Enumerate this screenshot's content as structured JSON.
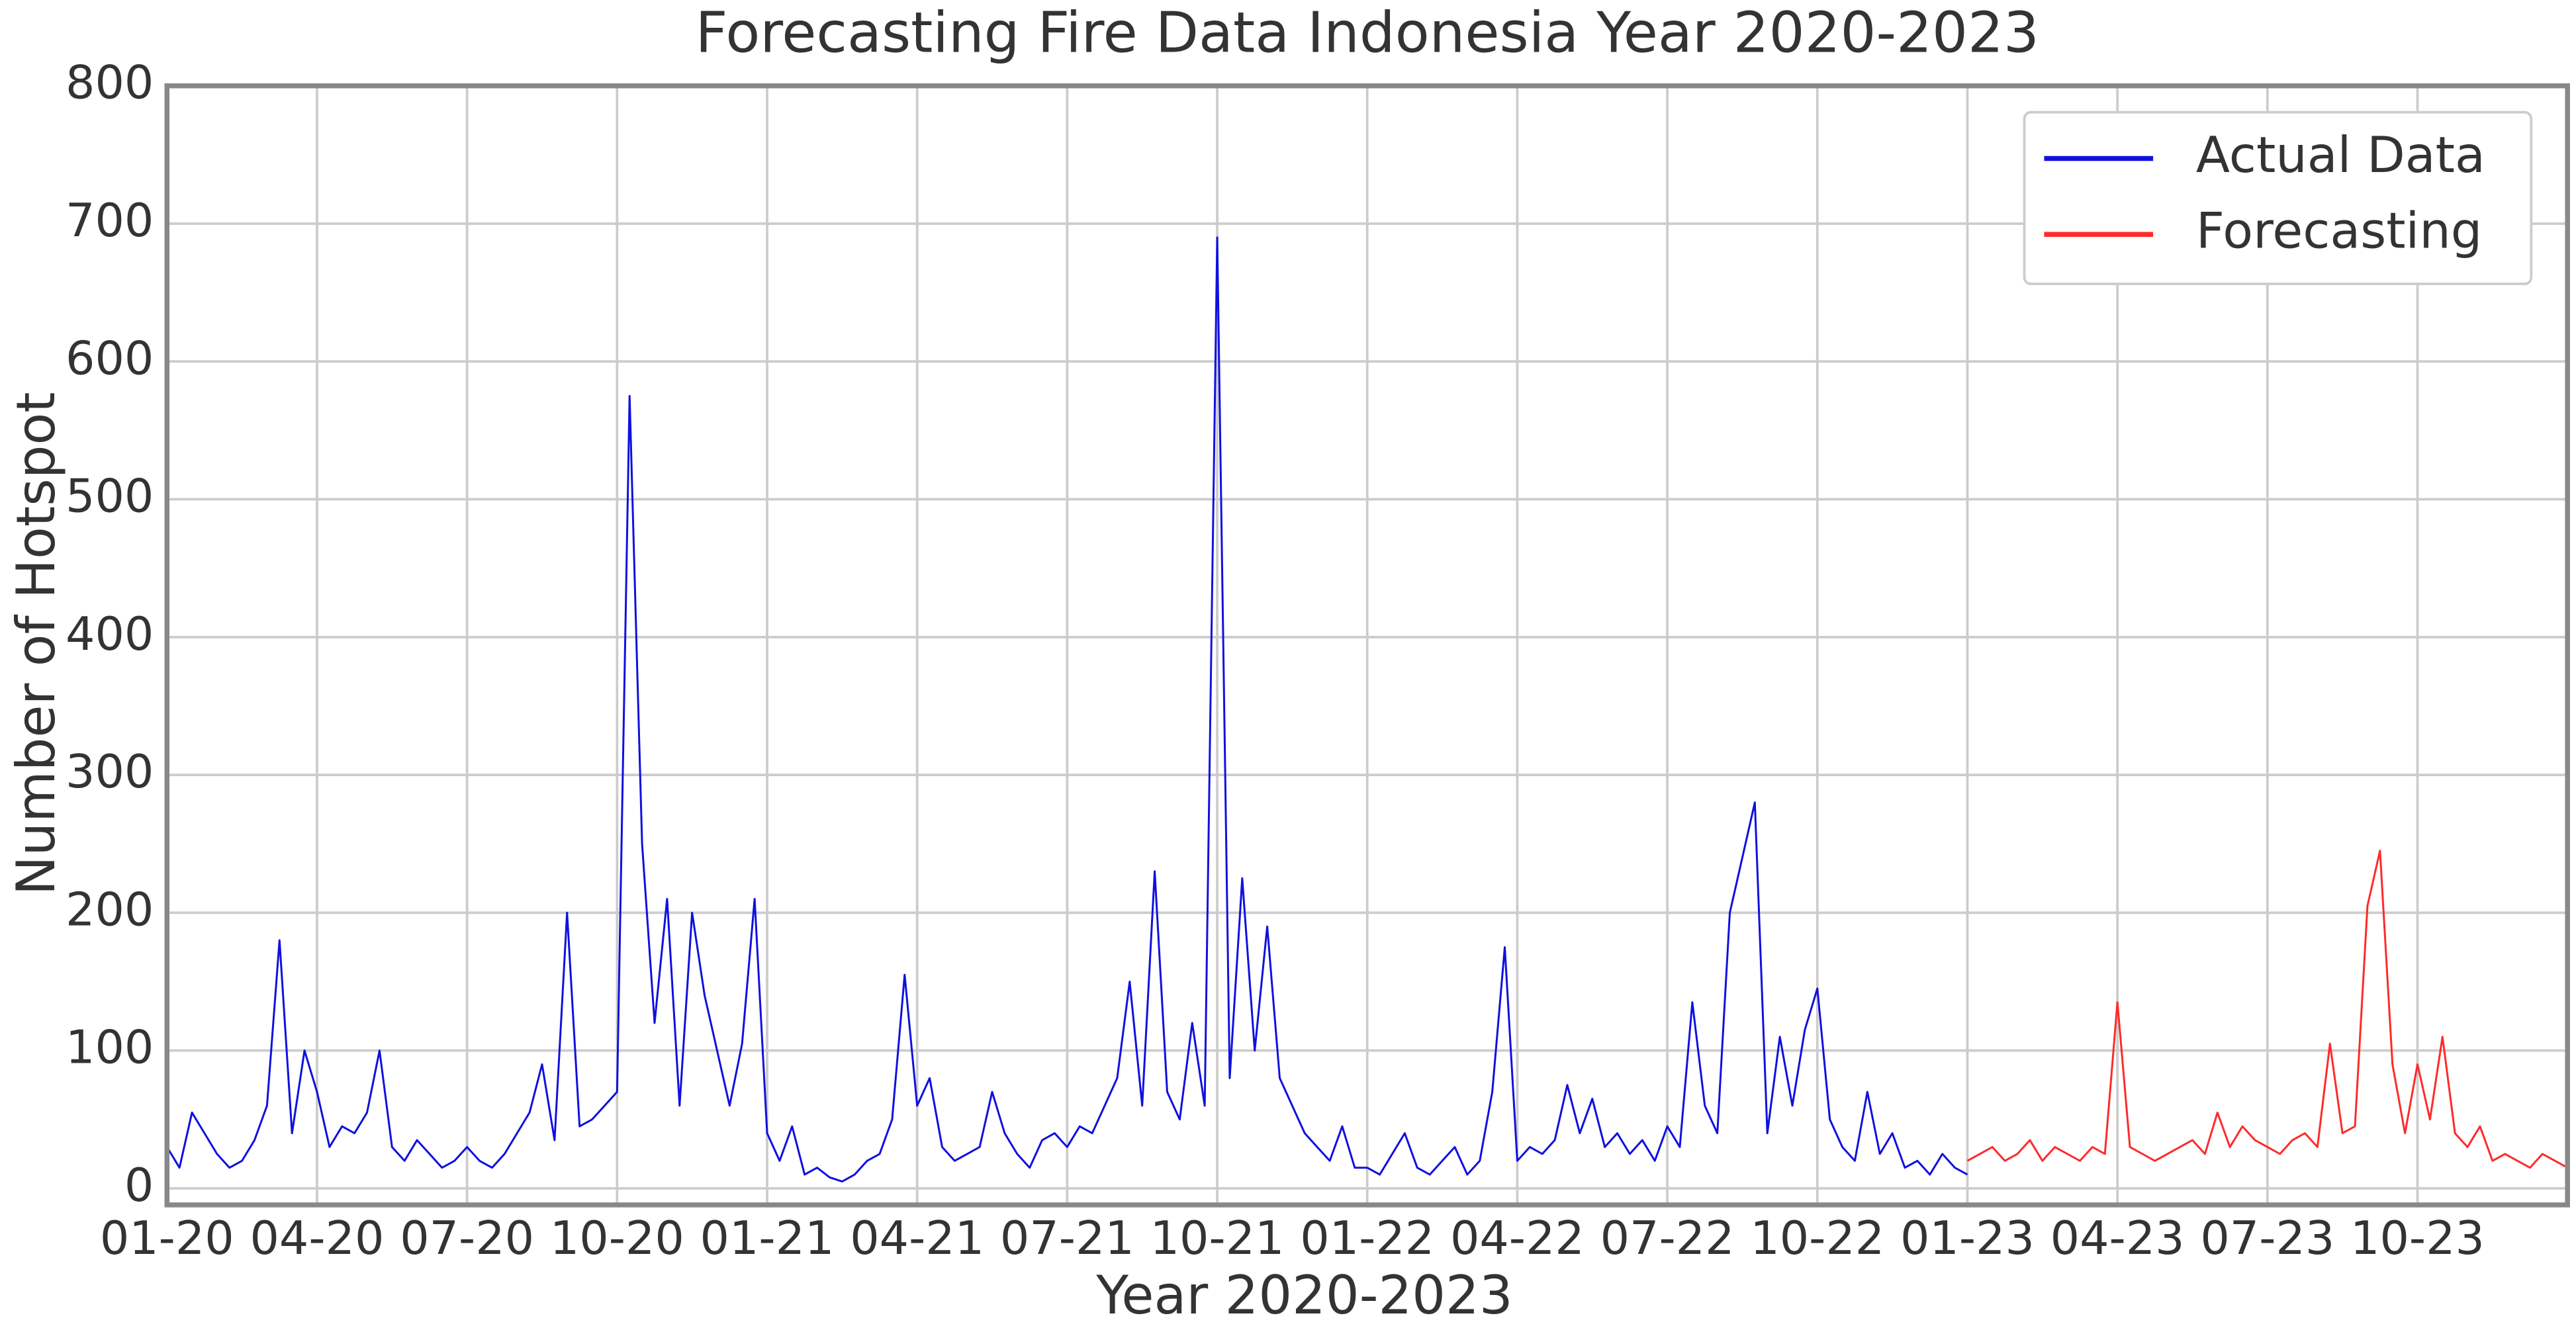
{
  "chart_data": {
    "type": "line",
    "title": "Forecasting Fire Data Indonesia Year 2020-2023",
    "x_label": "Year 2020-2023",
    "y_label": "Number of Hotspot",
    "xlim": [
      0,
      48
    ],
    "xticks": [
      {
        "value": 0,
        "label": "01-20"
      },
      {
        "value": 3,
        "label": "04-20"
      },
      {
        "value": 6,
        "label": "07-20"
      },
      {
        "value": 9,
        "label": "10-20"
      },
      {
        "value": 12,
        "label": "01-21"
      },
      {
        "value": 15,
        "label": "04-21"
      },
      {
        "value": 18,
        "label": "07-21"
      },
      {
        "value": 21,
        "label": "10-21"
      },
      {
        "value": 24,
        "label": "01-22"
      },
      {
        "value": 27,
        "label": "04-22"
      },
      {
        "value": 30,
        "label": "07-22"
      },
      {
        "value": 33,
        "label": "10-22"
      },
      {
        "value": 36,
        "label": "01-23"
      },
      {
        "value": 39,
        "label": "04-23"
      },
      {
        "value": 42,
        "label": "07-23"
      },
      {
        "value": 45,
        "label": "10-23"
      }
    ],
    "ylim": [
      -12,
      800
    ],
    "yticks": [
      0,
      100,
      200,
      300,
      400,
      500,
      600,
      700,
      800
    ],
    "grid": true,
    "legend": "upper right",
    "series": [
      {
        "name": "Actual Data",
        "color": "#1010e0",
        "x": [
          0,
          0.25,
          0.5,
          0.75,
          1,
          1.25,
          1.5,
          1.75,
          2,
          2.25,
          2.5,
          2.75,
          3,
          3.25,
          3.5,
          3.75,
          4,
          4.25,
          4.5,
          4.75,
          5,
          5.25,
          5.5,
          5.75,
          6,
          6.25,
          6.5,
          6.75,
          7,
          7.25,
          7.5,
          7.75,
          8,
          8.25,
          8.5,
          8.75,
          9,
          9.25,
          9.5,
          9.75,
          10,
          10.25,
          10.5,
          10.75,
          11,
          11.25,
          11.5,
          11.75,
          12,
          12.25,
          12.5,
          12.75,
          13,
          13.25,
          13.5,
          13.75,
          14,
          14.25,
          14.5,
          14.75,
          15,
          15.25,
          15.5,
          15.75,
          16,
          16.25,
          16.5,
          16.75,
          17,
          17.25,
          17.5,
          17.75,
          18,
          18.25,
          18.5,
          18.75,
          19,
          19.25,
          19.5,
          19.75,
          20,
          20.25,
          20.5,
          20.75,
          21,
          21.25,
          21.5,
          21.75,
          22,
          22.25,
          22.5,
          22.75,
          23,
          23.25,
          23.5,
          23.75,
          24,
          24.25,
          24.5,
          24.75,
          25,
          25.25,
          25.5,
          25.75,
          26,
          26.25,
          26.5,
          26.75,
          27,
          27.25,
          27.5,
          27.75,
          28,
          28.25,
          28.5,
          28.75,
          29,
          29.25,
          29.5,
          29.75,
          30,
          30.25,
          30.5,
          30.75,
          31,
          31.25,
          31.5,
          31.75,
          32,
          32.25,
          32.5,
          32.75,
          33,
          33.25,
          33.5,
          33.75,
          34,
          34.25,
          34.5,
          34.75,
          35,
          35.25,
          35.5,
          35.75,
          36
        ],
        "values": [
          30,
          15,
          55,
          40,
          25,
          15,
          20,
          35,
          60,
          180,
          40,
          100,
          70,
          30,
          45,
          40,
          55,
          100,
          30,
          20,
          35,
          25,
          15,
          20,
          30,
          20,
          15,
          25,
          40,
          55,
          90,
          35,
          200,
          45,
          50,
          60,
          70,
          575,
          250,
          120,
          210,
          60,
          200,
          140,
          100,
          60,
          105,
          210,
          40,
          20,
          45,
          10,
          15,
          8,
          5,
          10,
          20,
          25,
          50,
          155,
          60,
          80,
          30,
          20,
          25,
          30,
          70,
          40,
          25,
          15,
          35,
          40,
          30,
          45,
          40,
          60,
          80,
          150,
          60,
          230,
          70,
          50,
          120,
          60,
          690,
          80,
          225,
          100,
          190,
          80,
          60,
          40,
          30,
          20,
          45,
          15,
          15,
          10,
          25,
          40,
          15,
          10,
          20,
          30,
          10,
          20,
          70,
          175,
          20,
          30,
          25,
          35,
          75,
          40,
          65,
          30,
          40,
          25,
          35,
          20,
          45,
          30,
          135,
          60,
          40,
          200,
          240,
          280,
          40,
          110,
          60,
          115,
          145,
          50,
          30,
          20,
          70,
          25,
          40,
          15,
          20,
          10,
          25,
          15,
          10
        ]
      },
      {
        "name": "Forecasting",
        "color": "#ff2a2a",
        "x": [
          36,
          36.25,
          36.5,
          36.75,
          37,
          37.25,
          37.5,
          37.75,
          38,
          38.25,
          38.5,
          38.75,
          39,
          39.25,
          39.5,
          39.75,
          40,
          40.25,
          40.5,
          40.75,
          41,
          41.25,
          41.5,
          41.75,
          42,
          42.25,
          42.5,
          42.75,
          43,
          43.25,
          43.5,
          43.75,
          44,
          44.25,
          44.5,
          44.75,
          45,
          45.25,
          45.5,
          45.75,
          46,
          46.25,
          46.5,
          46.75,
          47,
          47.25,
          47.5,
          47.75,
          48
        ],
        "values": [
          20,
          25,
          30,
          20,
          25,
          35,
          20,
          30,
          25,
          20,
          30,
          25,
          135,
          30,
          25,
          20,
          25,
          30,
          35,
          25,
          55,
          30,
          45,
          35,
          30,
          25,
          35,
          40,
          30,
          105,
          40,
          45,
          205,
          245,
          90,
          40,
          90,
          50,
          110,
          40,
          30,
          45,
          20,
          25,
          20,
          15,
          25,
          20,
          15
        ]
      }
    ]
  }
}
